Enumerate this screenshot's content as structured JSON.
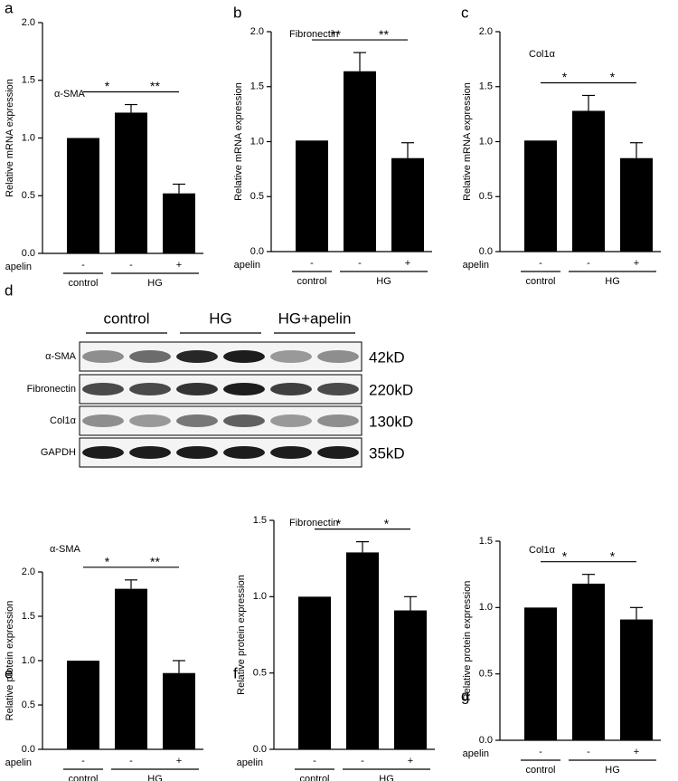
{
  "chart_data": [
    {
      "type": "bar",
      "panel": "a",
      "title": "α-SMA",
      "ylabel": "Relative mRNA expression",
      "categories": [
        "-",
        "-",
        "+"
      ],
      "row_label": "apelin",
      "groups": [
        "control",
        "HG"
      ],
      "values": [
        1.0,
        1.22,
        0.52
      ],
      "errors": [
        null,
        0.07,
        0.08
      ],
      "significance": [
        "*",
        "**"
      ],
      "color": "#000000",
      "ylim": [
        0,
        2
      ],
      "yticks": [
        {
          "value": 0,
          "label": "0.0"
        },
        0.5,
        {
          "value": 1,
          "label": "1.0"
        },
        1.5,
        {
          "value": 2,
          "label": "2.0"
        }
      ]
    },
    {
      "type": "bar",
      "panel": "b",
      "title": "Fibronectin",
      "ylabel": "Relative mRNA expression",
      "categories": [
        "-",
        "-",
        "+"
      ],
      "row_label": "apelin",
      "groups": [
        "control",
        "HG"
      ],
      "values": [
        1.01,
        1.64,
        0.85
      ],
      "errors": [
        null,
        0.17,
        0.14
      ],
      "significance": [
        "**",
        "**"
      ],
      "color": "#000000",
      "ylim": [
        0,
        2
      ],
      "yticks": [
        {
          "value": 0,
          "label": "0.0"
        },
        0.5,
        {
          "value": 1,
          "label": "1.0"
        },
        1.5,
        {
          "value": 2,
          "label": "2.0"
        }
      ]
    },
    {
      "type": "bar",
      "panel": "c",
      "title": "Col1α",
      "ylabel": "Relative mRNA expression",
      "categories": [
        "-",
        "-",
        "+"
      ],
      "row_label": "apelin",
      "groups": [
        "control",
        "HG"
      ],
      "values": [
        1.01,
        1.28,
        0.85
      ],
      "errors": [
        null,
        0.14,
        0.14
      ],
      "significance": [
        "*",
        "*"
      ],
      "color": "#000000",
      "ylim": [
        0,
        2
      ],
      "yticks": [
        {
          "value": 0,
          "label": "0.0"
        },
        0.5,
        {
          "value": 1,
          "label": "1.0"
        },
        1.5,
        {
          "value": 2,
          "label": "2.0"
        }
      ]
    },
    {
      "type": "bar",
      "panel": "e",
      "title": "α-SMA",
      "ylabel": "Relative protein expression",
      "categories": [
        "-",
        "-",
        "+"
      ],
      "row_label": "apelin",
      "groups": [
        "control",
        "HG"
      ],
      "values": [
        1.0,
        1.81,
        0.86
      ],
      "errors": [
        null,
        0.1,
        0.14
      ],
      "significance": [
        "*",
        "**"
      ],
      "color": "#000000",
      "ylim": [
        0,
        2
      ],
      "yticks": [
        {
          "value": 0,
          "label": "0.0"
        },
        0.5,
        {
          "value": 1,
          "label": "1.0"
        },
        1.5,
        {
          "value": 2,
          "label": "2.0"
        }
      ]
    },
    {
      "type": "bar",
      "panel": "f",
      "title": "Fibronectin",
      "ylabel": "Relative protein  expression",
      "categories": [
        "-",
        "-",
        "+"
      ],
      "row_label": "apelin",
      "groups": [
        "control",
        "HG"
      ],
      "values": [
        1.0,
        1.29,
        0.91
      ],
      "errors": [
        null,
        0.07,
        0.09
      ],
      "significance": [
        "*",
        "*"
      ],
      "color": "#000000",
      "ylim": [
        0,
        1.5
      ],
      "yticks": [
        {
          "value": 0,
          "label": "0.0"
        },
        0.5,
        {
          "value": 1,
          "label": "1.0"
        },
        1.5
      ]
    },
    {
      "type": "bar",
      "panel": "g",
      "title": "Col1α",
      "ylabel": "Relative protein  expression",
      "categories": [
        "-",
        "-",
        "+"
      ],
      "row_label": "apelin",
      "groups": [
        "control",
        "HG"
      ],
      "values": [
        1.0,
        1.18,
        0.91
      ],
      "errors": [
        null,
        0.07,
        0.09
      ],
      "significance": [
        "*",
        "*"
      ],
      "color": "#000000",
      "ylim": [
        0,
        1.5
      ],
      "yticks": [
        {
          "value": 0,
          "label": "0.0"
        },
        0.5,
        {
          "value": 1,
          "label": "1.0"
        },
        1.5
      ]
    }
  ],
  "blot": {
    "panel": "d",
    "groups": [
      "control",
      "HG",
      "HG+apelin"
    ],
    "rows": [
      {
        "label": "α-SMA",
        "size": "42kD"
      },
      {
        "label": "Fibronectin",
        "size": "220kD"
      },
      {
        "label": "Col1α",
        "size": "130kD"
      },
      {
        "label": "GAPDH",
        "size": "35kD"
      }
    ]
  }
}
